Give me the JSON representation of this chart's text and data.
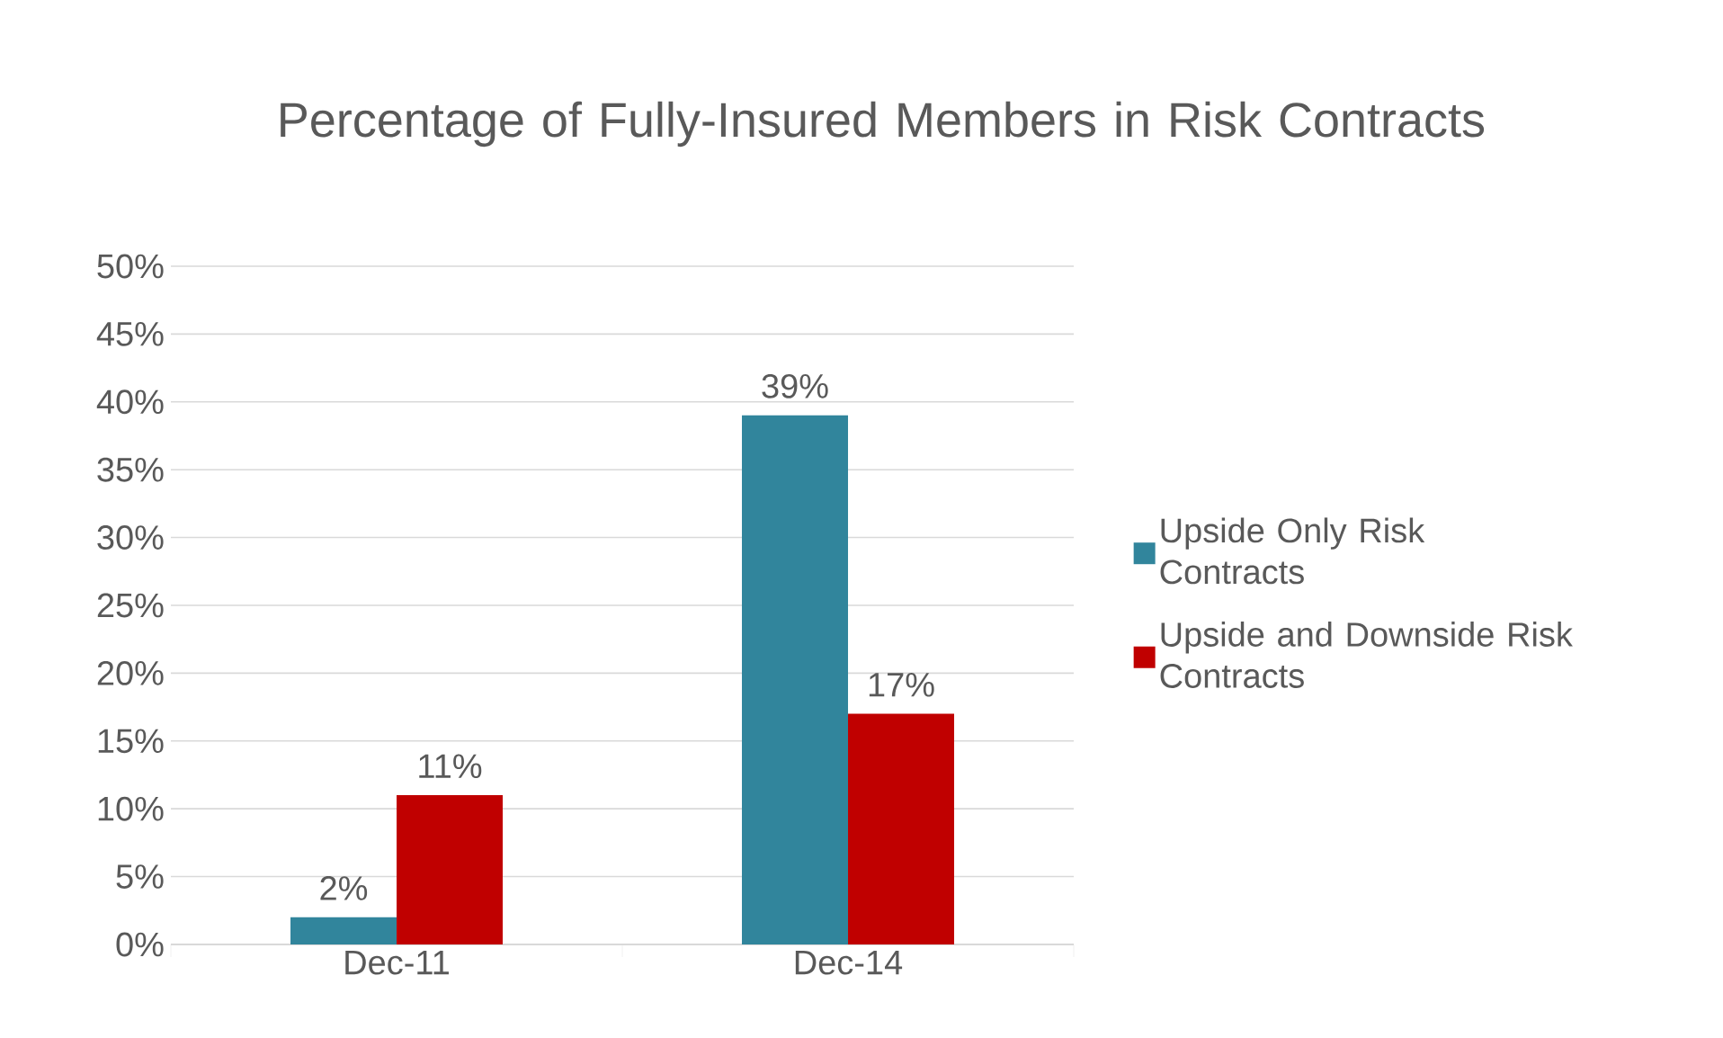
{
  "chart_data": {
    "type": "bar",
    "title": "Percentage of Fully-Insured Members in Risk Contracts",
    "categories": [
      "Dec-11",
      "Dec-14"
    ],
    "series": [
      {
        "name": "Upside Only Risk Contracts",
        "color": "#31859c",
        "values": [
          2,
          39
        ],
        "value_labels": [
          "2%",
          "39%"
        ]
      },
      {
        "name": "Upside and Downside Risk Contracts",
        "color": "#c00000",
        "values": [
          11,
          17
        ],
        "value_labels": [
          "11%",
          "17%"
        ]
      }
    ],
    "ylim": [
      0,
      50
    ],
    "yticks": [
      {
        "value": 0,
        "label": "0%"
      },
      {
        "value": 5,
        "label": "5%"
      },
      {
        "value": 10,
        "label": "10%"
      },
      {
        "value": 15,
        "label": "15%"
      },
      {
        "value": 20,
        "label": "20%"
      },
      {
        "value": 25,
        "label": "25%"
      },
      {
        "value": 30,
        "label": "30%"
      },
      {
        "value": 35,
        "label": "35%"
      },
      {
        "value": 40,
        "label": "40%"
      },
      {
        "value": 45,
        "label": "45%"
      },
      {
        "value": 50,
        "label": "50%"
      }
    ],
    "grid": "y",
    "legend": "right"
  }
}
